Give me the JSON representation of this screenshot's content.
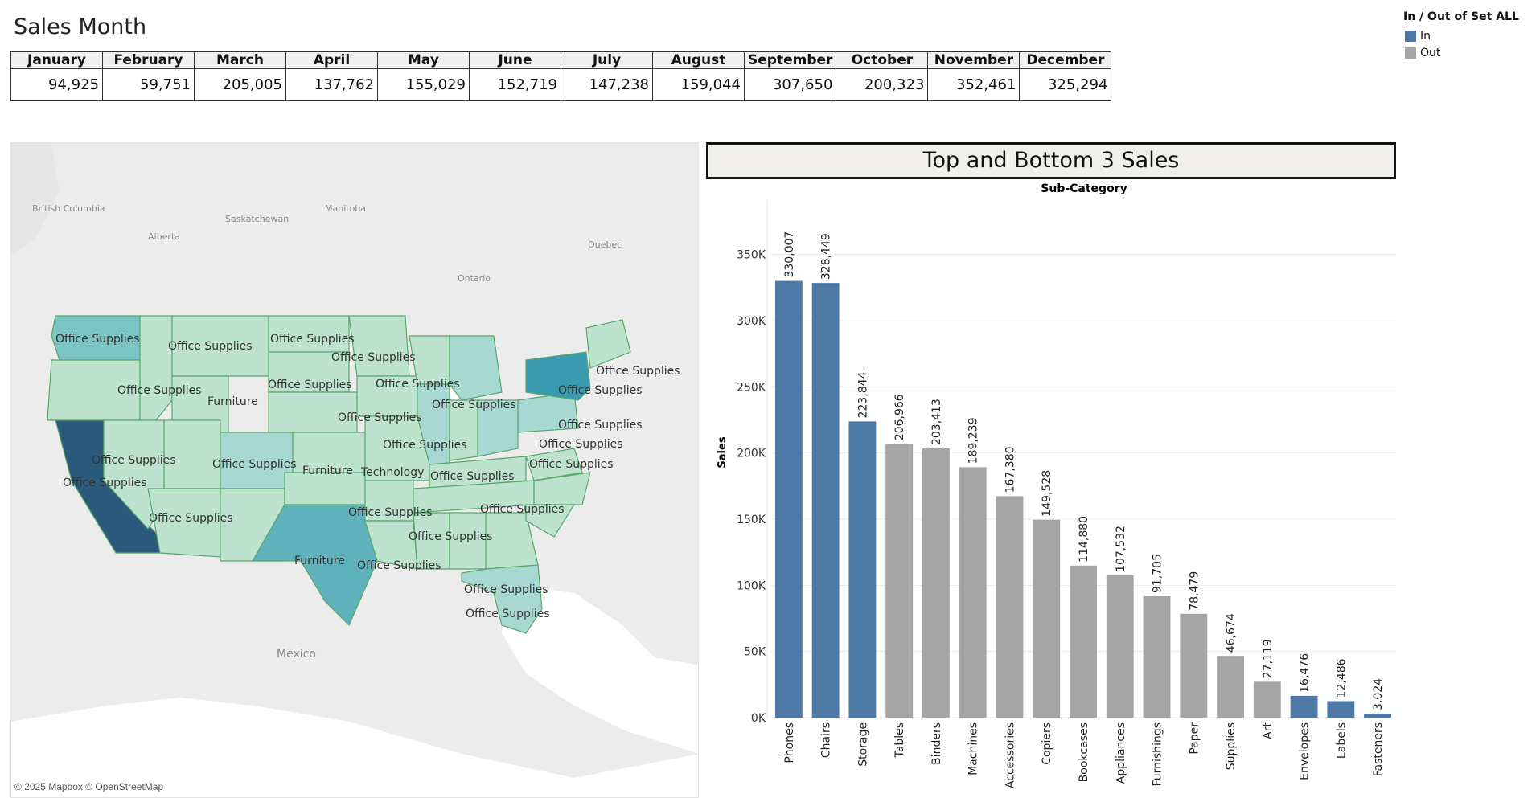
{
  "page_title": "Sales Month",
  "months_table": {
    "headers": [
      "January",
      "February",
      "March",
      "April",
      "May",
      "June",
      "July",
      "August",
      "September",
      "October",
      "November",
      "December"
    ],
    "values": [
      "94,925",
      "59,751",
      "205,005",
      "137,762",
      "155,029",
      "152,719",
      "147,238",
      "159,044",
      "307,650",
      "200,323",
      "352,461",
      "325,294"
    ]
  },
  "legend": {
    "title": "In / Out of Set ALL",
    "items": [
      {
        "label": "In",
        "color": "#4e79a7"
      },
      {
        "label": "Out",
        "color": "#a5a5a5"
      }
    ]
  },
  "map": {
    "attribution": "© 2025 Mapbox © OpenStreetMap",
    "place_labels": [
      "British Columbia",
      "Alberta",
      "Saskatchewan",
      "Manitoba",
      "Ontario",
      "Quebec",
      "Mexico"
    ],
    "state_labels": [
      "Office Supplies",
      "Office Supplies",
      "Office Supplies",
      "Office Supplies",
      "Office Supplies",
      "Furniture",
      "Office Supplies",
      "Office Supplies",
      "Office Supplies",
      "Office Supplies",
      "Office Supplies",
      "Office Supplies",
      "Office Supplies",
      "Office Supplies",
      "Furniture",
      "Technology",
      "Office Supplies",
      "Office Supplies",
      "Office Supplies",
      "Office Supplies",
      "Office Supplies",
      "Office Supplies",
      "Office Supplies",
      "Office Supplies",
      "Office Supplies",
      "Furniture",
      "Office Supplies",
      "Office Supplies",
      "Office Supplies",
      "Office Supplies"
    ],
    "colors": {
      "water": "#ffffff",
      "land": "#ececec",
      "low": "#bde3cf",
      "mid": "#7cc4c4",
      "high": "#3a9bb0",
      "top": "#2c5a7c",
      "border": "#58a86a"
    }
  },
  "chart_data": {
    "type": "bar",
    "title": "Top and Bottom 3 Sales",
    "xlabel": "Sub-Category",
    "ylabel": "Sales",
    "ylim": [
      0,
      385000
    ],
    "yticks": [
      0,
      50000,
      100000,
      150000,
      200000,
      250000,
      300000,
      350000
    ],
    "ytick_labels": [
      "0K",
      "50K",
      "100K",
      "150K",
      "200K",
      "250K",
      "300K",
      "350K"
    ],
    "grid": true,
    "categories": [
      "Phones",
      "Chairs",
      "Storage",
      "Tables",
      "Binders",
      "Machines",
      "Accessories",
      "Copiers",
      "Bookcases",
      "Appliances",
      "Furnishings",
      "Paper",
      "Supplies",
      "Art",
      "Envelopes",
      "Labels",
      "Fasteners"
    ],
    "values": [
      330007,
      328449,
      223844,
      206966,
      203413,
      189239,
      167380,
      149528,
      114880,
      107532,
      91705,
      78479,
      46674,
      27119,
      16476,
      12486,
      3024
    ],
    "value_labels": [
      "330,007",
      "328,449",
      "223,844",
      "206,966",
      "203,413",
      "189,239",
      "167,380",
      "149,528",
      "114,880",
      "107,532",
      "91,705",
      "78,479",
      "46,674",
      "27,119",
      "16,476",
      "12,486",
      "3,024"
    ],
    "in_set": [
      "In",
      "In",
      "In",
      "Out",
      "Out",
      "Out",
      "Out",
      "Out",
      "Out",
      "Out",
      "Out",
      "Out",
      "Out",
      "Out",
      "In",
      "In",
      "In"
    ]
  }
}
